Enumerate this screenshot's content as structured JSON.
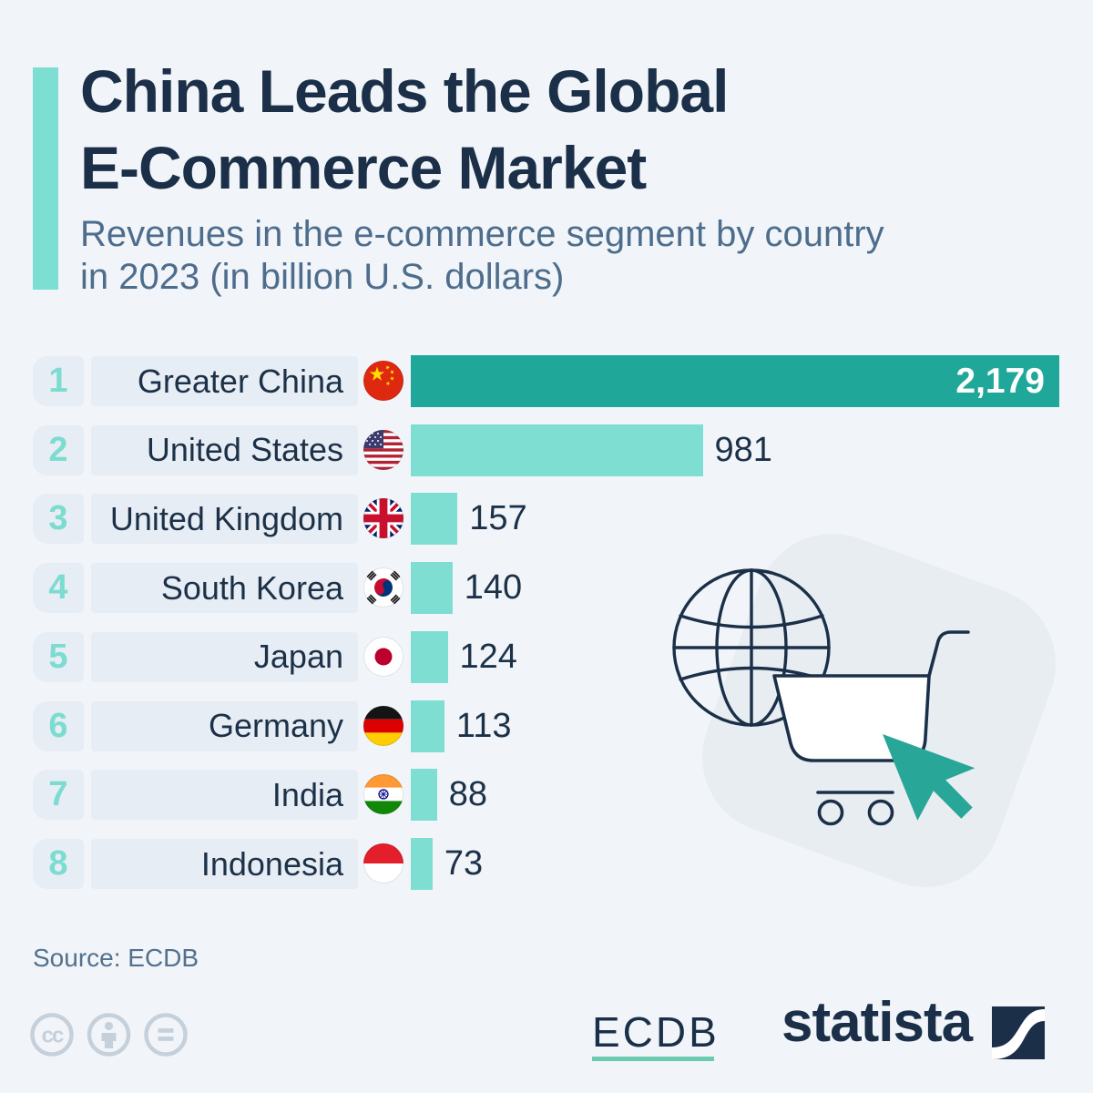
{
  "page": {
    "background_color": "#F1F5F9",
    "accent_color": "#7CDFD2",
    "navy_color": "#1B3048"
  },
  "header": {
    "title_line1": "China Leads the Global",
    "title_line2": "E-Commerce Market",
    "subtitle_line1": "Revenues in the e-commerce segment by country",
    "subtitle_line2": "in 2023 (in billion U.S. dollars)"
  },
  "chart_data": {
    "type": "bar",
    "orientation": "horizontal",
    "title": "China Leads the Global E-Commerce Market",
    "subtitle": "Revenues in the e-commerce segment by country in 2023 (in billion U.S. dollars)",
    "unit": "billion U.S. dollars",
    "xlim": [
      0,
      2179
    ],
    "grid": false,
    "legend": false,
    "ranks": [
      "1",
      "2",
      "3",
      "4",
      "5",
      "6",
      "7",
      "8"
    ],
    "categories": [
      "Greater China",
      "United States",
      "United Kingdom",
      "South Korea",
      "Japan",
      "Germany",
      "India",
      "Indonesia"
    ],
    "flags": [
      "china",
      "united-states",
      "united-kingdom",
      "south-korea",
      "japan",
      "germany",
      "india",
      "indonesia"
    ],
    "values": [
      2179,
      981,
      157,
      140,
      124,
      113,
      88,
      73
    ],
    "value_labels": [
      "2,179",
      "981",
      "157",
      "140",
      "124",
      "113",
      "88",
      "73"
    ],
    "bar_color_first": "#1FA89A",
    "bar_color_rest": "#7EDED2"
  },
  "footer": {
    "source": "Source: ECDB",
    "license_icons": [
      "cc-icon",
      "attribution-person-icon",
      "equals-icon"
    ],
    "ecdb_logo_text": "ECDB",
    "statista_logo_text": "statista"
  }
}
